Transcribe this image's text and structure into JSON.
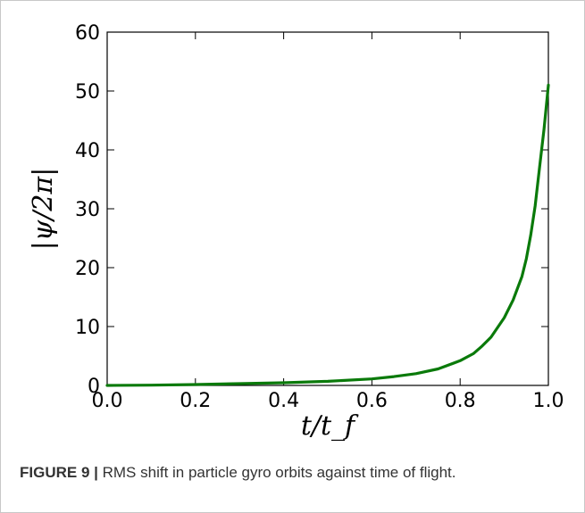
{
  "chart_data": {
    "type": "line",
    "title": "",
    "xlabel": "t/t_f",
    "ylabel": "|ψ/2π|",
    "xlim": [
      0.0,
      1.0
    ],
    "ylim": [
      0,
      60
    ],
    "xticks": [
      "0.0",
      "0.2",
      "0.4",
      "0.6",
      "0.8",
      "1.0"
    ],
    "yticks": [
      "0",
      "10",
      "20",
      "30",
      "40",
      "50",
      "60"
    ],
    "grid": false,
    "legend": "none",
    "series": [
      {
        "color": "#0a7a0a",
        "x": [
          0.0,
          0.1,
          0.2,
          0.3,
          0.4,
          0.5,
          0.6,
          0.65,
          0.7,
          0.75,
          0.8,
          0.83,
          0.85,
          0.87,
          0.9,
          0.92,
          0.94,
          0.95,
          0.96,
          0.97,
          0.98,
          0.99,
          1.0
        ],
        "y": [
          0.0,
          0.05,
          0.15,
          0.3,
          0.45,
          0.7,
          1.1,
          1.5,
          2.0,
          2.8,
          4.2,
          5.4,
          6.7,
          8.2,
          11.5,
          14.5,
          18.5,
          21.5,
          25.5,
          30.5,
          37.0,
          43.5,
          51.0
        ]
      }
    ]
  },
  "caption": {
    "label": "FIGURE 9 |",
    "text": " RMS shift in particle gyro orbits against time of flight."
  }
}
